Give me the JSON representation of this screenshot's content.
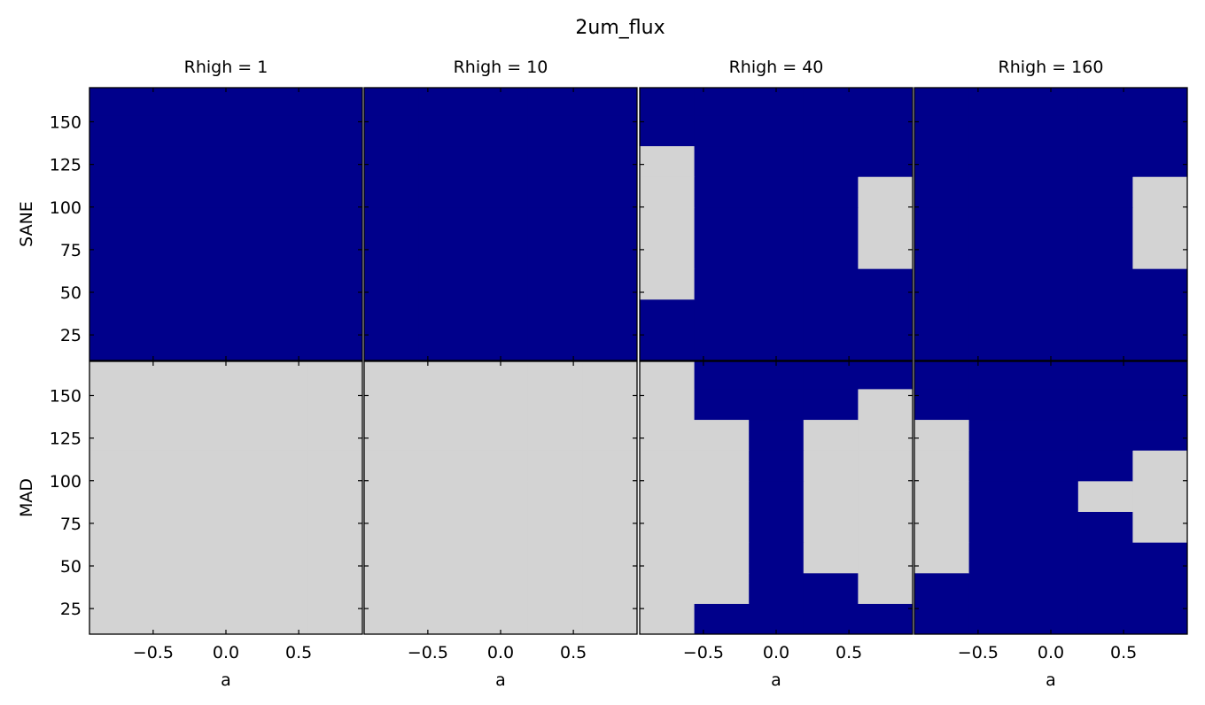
{
  "title": "2um_flux",
  "colors": {
    "fail": "#00008B",
    "pass": "#D3D3D3",
    "frame": "#000000"
  },
  "chart_data": {
    "type": "heatmap",
    "title": "2um_flux",
    "column_titles": [
      "Rhigh = 1",
      "Rhigh = 10",
      "Rhigh = 40",
      "Rhigh = 160"
    ],
    "row_labels": [
      "SANE",
      "MAD"
    ],
    "xlabel": "a",
    "xlim": [
      -0.9375,
      0.9375
    ],
    "ylim": [
      10,
      170
    ],
    "xticks": [
      -0.5,
      0.0,
      0.5
    ],
    "xtick_labels": [
      "−0.5",
      "0.0",
      "0.5"
    ],
    "yticks": [
      25,
      50,
      75,
      100,
      125,
      150
    ],
    "ytick_labels": [
      "25",
      "50",
      "75",
      "100",
      "125",
      "150"
    ],
    "x_centers": [
      -0.75,
      -0.375,
      0.0,
      0.375,
      0.75
    ],
    "y_centers": [
      19,
      37,
      55,
      73,
      91,
      109,
      127,
      145,
      163
    ],
    "value_legend": {
      "0": "dark blue",
      "1": "light gray"
    },
    "panels": [
      {
        "row": "SANE",
        "column": "Rhigh = 1",
        "cells": [
          [
            0,
            0,
            0,
            0,
            0
          ],
          [
            0,
            0,
            0,
            0,
            0
          ],
          [
            0,
            0,
            0,
            0,
            0
          ],
          [
            0,
            0,
            0,
            0,
            0
          ],
          [
            0,
            0,
            0,
            0,
            0
          ],
          [
            0,
            0,
            0,
            0,
            0
          ],
          [
            0,
            0,
            0,
            0,
            0
          ],
          [
            0,
            0,
            0,
            0,
            0
          ],
          [
            0,
            0,
            0,
            0,
            0
          ]
        ]
      },
      {
        "row": "SANE",
        "column": "Rhigh = 10",
        "cells": [
          [
            0,
            0,
            0,
            0,
            0
          ],
          [
            0,
            0,
            0,
            0,
            0
          ],
          [
            0,
            0,
            0,
            0,
            0
          ],
          [
            0,
            0,
            0,
            0,
            0
          ],
          [
            0,
            0,
            0,
            0,
            0
          ],
          [
            0,
            0,
            0,
            0,
            0
          ],
          [
            0,
            0,
            0,
            0,
            0
          ],
          [
            0,
            0,
            0,
            0,
            0
          ],
          [
            0,
            0,
            0,
            0,
            0
          ]
        ]
      },
      {
        "row": "SANE",
        "column": "Rhigh = 40",
        "cells": [
          [
            0,
            0,
            0,
            0,
            0
          ],
          [
            0,
            0,
            0,
            0,
            0
          ],
          [
            1,
            0,
            0,
            0,
            0
          ],
          [
            1,
            0,
            0,
            0,
            1
          ],
          [
            1,
            0,
            0,
            0,
            1
          ],
          [
            1,
            0,
            0,
            0,
            1
          ],
          [
            1,
            0,
            0,
            0,
            0
          ],
          [
            0,
            0,
            0,
            0,
            0
          ],
          [
            0,
            0,
            0,
            0,
            0
          ]
        ]
      },
      {
        "row": "SANE",
        "column": "Rhigh = 160",
        "cells": [
          [
            0,
            0,
            0,
            0,
            0
          ],
          [
            0,
            0,
            0,
            0,
            0
          ],
          [
            0,
            0,
            0,
            0,
            0
          ],
          [
            0,
            0,
            0,
            0,
            1
          ],
          [
            0,
            0,
            0,
            0,
            1
          ],
          [
            0,
            0,
            0,
            0,
            1
          ],
          [
            0,
            0,
            0,
            0,
            0
          ],
          [
            0,
            0,
            0,
            0,
            0
          ],
          [
            0,
            0,
            0,
            0,
            0
          ]
        ]
      },
      {
        "row": "MAD",
        "column": "Rhigh = 1",
        "cells": [
          [
            1,
            1,
            1,
            1,
            1
          ],
          [
            1,
            1,
            1,
            1,
            1
          ],
          [
            1,
            1,
            1,
            1,
            1
          ],
          [
            1,
            1,
            1,
            1,
            1
          ],
          [
            1,
            1,
            1,
            1,
            1
          ],
          [
            1,
            1,
            1,
            1,
            1
          ],
          [
            1,
            1,
            1,
            1,
            1
          ],
          [
            1,
            1,
            1,
            1,
            1
          ],
          [
            1,
            1,
            1,
            1,
            1
          ]
        ]
      },
      {
        "row": "MAD",
        "column": "Rhigh = 10",
        "cells": [
          [
            1,
            1,
            1,
            1,
            1
          ],
          [
            1,
            1,
            1,
            1,
            1
          ],
          [
            1,
            1,
            1,
            1,
            1
          ],
          [
            1,
            1,
            1,
            1,
            1
          ],
          [
            1,
            1,
            1,
            1,
            1
          ],
          [
            1,
            1,
            1,
            1,
            1
          ],
          [
            1,
            1,
            1,
            1,
            1
          ],
          [
            1,
            1,
            1,
            1,
            1
          ],
          [
            1,
            1,
            1,
            1,
            1
          ]
        ]
      },
      {
        "row": "MAD",
        "column": "Rhigh = 40",
        "cells": [
          [
            1,
            0,
            0,
            0,
            0
          ],
          [
            1,
            1,
            0,
            0,
            1
          ],
          [
            1,
            1,
            0,
            1,
            1
          ],
          [
            1,
            1,
            0,
            1,
            1
          ],
          [
            1,
            1,
            0,
            1,
            1
          ],
          [
            1,
            1,
            0,
            1,
            1
          ],
          [
            1,
            1,
            0,
            1,
            1
          ],
          [
            1,
            0,
            0,
            0,
            1
          ],
          [
            1,
            0,
            0,
            0,
            0
          ]
        ]
      },
      {
        "row": "MAD",
        "column": "Rhigh = 160",
        "cells": [
          [
            0,
            0,
            0,
            0,
            0
          ],
          [
            0,
            0,
            0,
            0,
            0
          ],
          [
            1,
            0,
            0,
            0,
            0
          ],
          [
            1,
            0,
            0,
            0,
            1
          ],
          [
            1,
            0,
            0,
            1,
            1
          ],
          [
            1,
            0,
            0,
            0,
            1
          ],
          [
            1,
            0,
            0,
            0,
            0
          ],
          [
            0,
            0,
            0,
            0,
            0
          ],
          [
            0,
            0,
            0,
            0,
            0
          ]
        ]
      }
    ]
  }
}
